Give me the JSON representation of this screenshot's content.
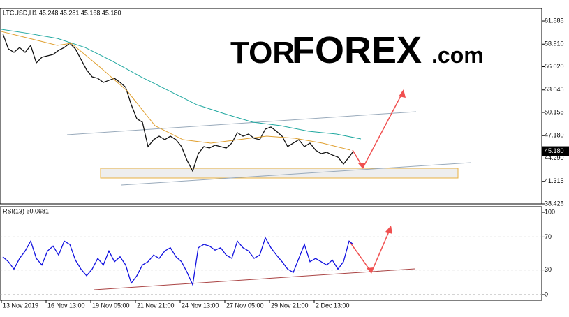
{
  "logo": {
    "part1": "TOR",
    "part2": "FOREX",
    "part3": ".com"
  },
  "chart_data": [
    {
      "type": "line",
      "title": "LTCUSD,H1  45.248 45.281 45.168 45.180",
      "xlim": [
        -2,
        774
      ],
      "ylim": [
        38.425,
        63.5
      ],
      "yticks": [
        38.425,
        41.315,
        {
          "value": 44.29,
          "label": "44.290"
        },
        {
          "value": 47.18,
          "label": "47.180"
        },
        50.155,
        53.045,
        {
          "value": 56.02,
          "label": "56.020"
        },
        {
          "value": 58.91,
          "label": "58.910"
        },
        61.885
      ],
      "price_label": {
        "value": 45.18,
        "label": "45.180"
      },
      "series": [
        {
          "color": "#111111",
          "x": [
            2,
            10,
            18,
            26,
            34,
            42,
            50,
            58,
            66,
            74,
            82,
            90,
            98,
            106,
            114,
            122,
            130,
            138,
            146,
            154,
            162,
            170,
            178,
            186,
            194,
            202,
            210,
            218,
            226,
            234,
            242,
            250,
            258,
            266,
            274,
            282,
            290,
            298,
            306,
            314,
            322,
            330,
            338,
            346,
            354,
            362,
            370,
            378,
            386,
            394,
            402,
            410,
            418,
            426,
            434,
            442,
            450,
            458,
            466,
            474,
            482,
            490,
            498,
            504
          ],
          "values": [
            60.27,
            58.3,
            57.86,
            58.48,
            57.86,
            58.75,
            56.51,
            57.23,
            57.41,
            57.59,
            58.12,
            58.48,
            59.02,
            58.3,
            56.96,
            55.62,
            54.72,
            54.54,
            54.01,
            54.27,
            54.54,
            54.01,
            53.38,
            51.14,
            49.35,
            48.9,
            45.77,
            46.66,
            47.11,
            46.66,
            47.11,
            46.66,
            45.77,
            43.98,
            42.63,
            44.87,
            45.77,
            45.59,
            45.95,
            45.77,
            45.59,
            46.22,
            47.56,
            47.11,
            47.38,
            46.84,
            46.66,
            48.01,
            48.28,
            47.74,
            47.11,
            45.77,
            46.22,
            46.66,
            45.77,
            46.22,
            45.32,
            44.87,
            45.05,
            44.69,
            44.42,
            43.53,
            44.42,
            45.18
          ]
        },
        {
          "color": "#20a8a0",
          "x": [
            0,
            40,
            80,
            120,
            160,
            200,
            240,
            280,
            320,
            360,
            400,
            440,
            480,
            515
          ],
          "values": [
            60.81,
            60.27,
            59.65,
            58.48,
            56.69,
            54.72,
            52.93,
            51.14,
            49.98,
            48.9,
            48.45,
            47.74,
            47.38,
            46.75
          ]
        },
        {
          "color": "#e0a030",
          "x": [
            0,
            40,
            80,
            100,
            140,
            180,
            220,
            260,
            300,
            340,
            380,
            420,
            460,
            500
          ],
          "values": [
            60.54,
            59.65,
            58.75,
            59.02,
            56.06,
            52.93,
            48.45,
            46.66,
            46.22,
            46.66,
            47.11,
            46.84,
            46.22,
            45.32
          ]
        }
      ]
    },
    {
      "type": "line",
      "title": "RSI(13) 60.0681",
      "xlim": [
        -2,
        774
      ],
      "ylim": [
        -6.8,
        106.8
      ],
      "yticks": [
        0,
        30,
        70,
        100
      ],
      "grid": true,
      "xticks": [
        {
          "value": 0,
          "label": "13 Nov 2019"
        },
        {
          "value": 64,
          "label": "16 Nov 13:00"
        },
        {
          "value": 128,
          "label": "19 Nov 05:00"
        },
        {
          "value": 192,
          "label": "21 Nov 21:00"
        },
        {
          "value": 256,
          "label": "24 Nov 13:00"
        },
        {
          "value": 320,
          "label": "27 Nov 05:00"
        },
        {
          "value": 384,
          "label": "29 Nov 21:00"
        },
        {
          "value": 448,
          "label": "2 Dec 13:00"
        }
      ],
      "series": [
        {
          "color": "#1010e0",
          "x": [
            2,
            10,
            18,
            26,
            34,
            42,
            50,
            58,
            66,
            74,
            82,
            90,
            98,
            106,
            114,
            122,
            130,
            138,
            146,
            154,
            162,
            170,
            178,
            186,
            194,
            202,
            210,
            218,
            226,
            234,
            242,
            250,
            258,
            266,
            274,
            282,
            290,
            298,
            306,
            314,
            322,
            330,
            338,
            346,
            354,
            362,
            370,
            378,
            386,
            394,
            402,
            410,
            418,
            426,
            434,
            442,
            450,
            458,
            466,
            474,
            482,
            490,
            498,
            504
          ],
          "values": [
            46,
            40,
            31,
            44,
            53,
            65,
            44,
            36,
            53,
            59,
            48,
            65,
            61,
            42,
            31,
            23,
            31,
            44,
            36,
            53,
            40,
            46,
            36,
            14,
            23,
            36,
            40,
            48,
            44,
            53,
            57,
            46,
            40,
            27,
            12,
            57,
            61,
            59,
            54,
            57,
            48,
            44,
            65,
            57,
            53,
            44,
            48,
            69,
            57,
            48,
            40,
            31,
            27,
            44,
            61,
            40,
            44,
            40,
            36,
            42,
            31,
            40,
            65,
            61
          ]
        }
      ]
    }
  ]
}
